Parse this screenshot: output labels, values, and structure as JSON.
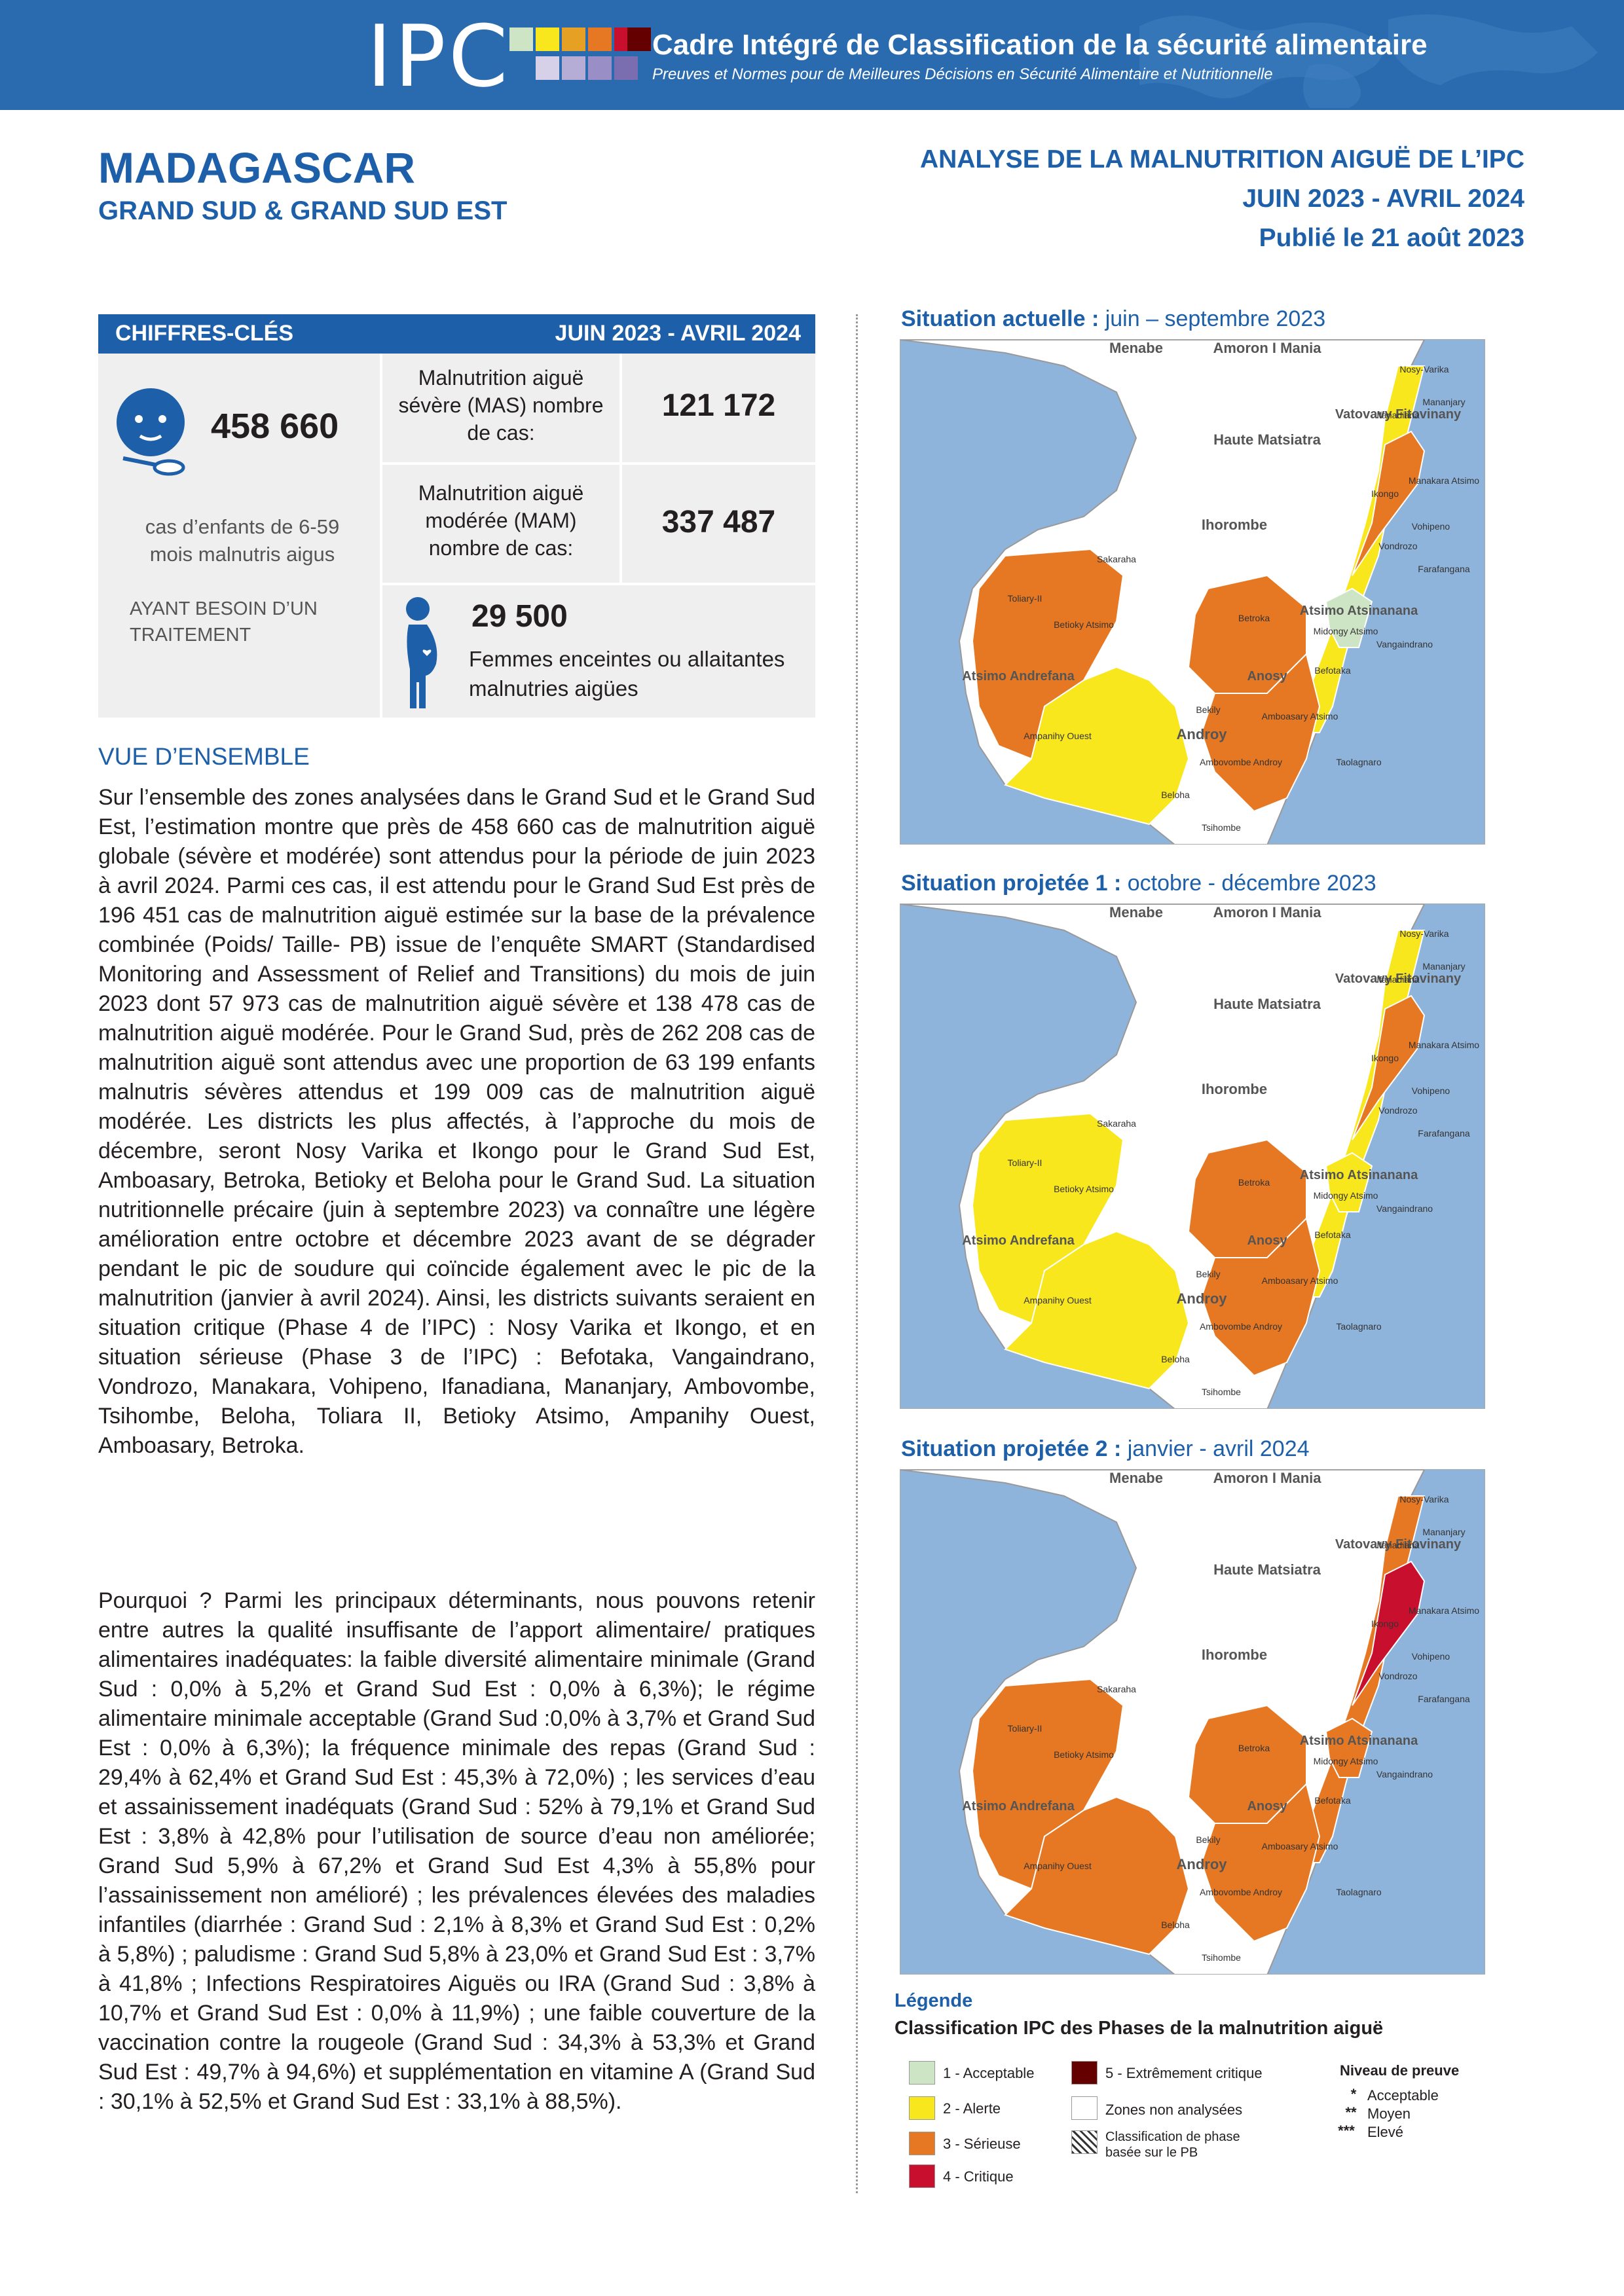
{
  "header": {
    "logo": "IPC",
    "title": "Cadre Intégré de Classification de la sécurité alimentaire",
    "subtitle": "Preuves et Normes pour de Meilleures Décisions en Sécurité Alimentaire et Nutritionnelle"
  },
  "country": "MADAGASCAR",
  "region": "GRAND SUD & GRAND SUD EST",
  "analysis": {
    "line1": "ANALYSE DE LA MALNUTRITION AIGUË DE L’IPC",
    "line2": "JUIN 2023 - AVRIL 2024",
    "line3": "Publié le 21 août 2023"
  },
  "key_figures": {
    "title": "CHIFFRES-CLÉS",
    "period": "JUIN 2023 - AVRIL 2024",
    "children_total": "458 660",
    "children_desc": "cas d’enfants de 6-59 mois malnutris aigus",
    "need_treatment": "AYANT BESOIN D’UN TRAITEMENT",
    "mas_label": "Malnutrition aiguë sévère (MAS) nombre de cas:",
    "mas_value": "121 172",
    "mam_label": "Malnutrition aiguë modérée (MAM) nombre de cas:",
    "mam_value": "337 487",
    "women_value": "29 500",
    "women_label": "Femmes enceintes ou allaitantes malnutries aigües"
  },
  "overview": {
    "title": "VUE D’ENSEMBLE",
    "p1": "Sur l’ensemble des zones analysées dans le Grand Sud et le Grand Sud Est, l’estimation montre que près de 458 660 cas de malnutrition aiguë globale (sévère et modérée) sont attendus pour la période de juin 2023 à avril 2024. Parmi ces cas, il est attendu pour le Grand Sud Est près de 196 451 cas de malnutrition aiguë estimée sur la base de la prévalence combinée (Poids/ Taille- PB) issue de l’enquête SMART (Standardised Monitoring and Assessment of Relief and Transitions) du mois de juin 2023 dont 57 973 cas de malnutrition aiguë sévère et 138 478 cas de malnutrition aiguë modérée. Pour le Grand Sud, près de 262 208 cas de malnutrition aiguë sont attendus avec une proportion de 63 199 enfants malnutris sévères attendus et 199 009 cas de malnutrition aiguë modérée. Les districts les plus affectés, à l’approche du mois de décembre, seront Nosy Varika et Ikongo pour le Grand Sud Est, Amboasary, Betroka, Betioky et Beloha pour le Grand Sud.  La situation nutritionnelle précaire (juin à septembre 2023) va connaître une légère amélioration entre octobre et décembre 2023 avant de se dégrader pendant le pic de soudure qui coïncide également avec le pic de la malnutrition (janvier à avril 2024).  Ainsi, les districts suivants seraient en situation critique (Phase 4 de l’IPC) : Nosy Varika et Ikongo, et en situation sérieuse (Phase 3 de l’IPC) : Befotaka, Vangaindrano, Vondrozo, Manakara, Vohipeno, Ifanadiana, Mananjary, Ambovombe, Tsihombe, Beloha, Toliara II, Betioky Atsimo, Ampanihy Ouest, Amboasary, Betroka.",
    "p2": "Pourquoi ? Parmi les principaux déterminants, nous pouvons retenir entre autres la qualité insuffisante de l’apport alimentaire/ pratiques alimentaires inadéquates: la faible diversité alimentaire minimale (Grand Sud : 0,0% à 5,2% et Grand Sud Est : 0,0% à 6,3%); le régime alimentaire minimale acceptable (Grand Sud :0,0% à 3,7% et Grand Sud Est : 0,0% à 6,3%); la fréquence minimale des repas (Grand Sud : 29,4% à 62,4% et Grand Sud Est : 45,3% à 72,0%) ;  les services d’eau et assainissement inadéquats (Grand Sud : 52% à 79,1% et Grand Sud Est : 3,8% à 42,8% pour l’utilisation de source d’eau non améliorée; Grand Sud 5,9% à 67,2% et Grand Sud Est 4,3% à 55,8% pour l’assainissement non amélioré) ; les prévalences élevées des maladies infantiles (diarrhée : Grand Sud : 2,1% à 8,3% et Grand Sud Est : 0,2% à 5,8%) ; paludisme : Grand Sud 5,8% à 23,0% et Grand Sud Est : 3,7% à 41,8% ; Infections Respiratoires Aiguës ou IRA (Grand Sud : 3,8% à 10,7% et Grand Sud Est : 0,0% à 11,9%) ; une faible couverture de la vaccination contre la rougeole (Grand Sud : 34,3% à 53,3% et Grand Sud Est : 49,7% à 94,6%) et supplémentation en vitamine A (Grand Sud : 30,1% à 52,5% et Grand Sud Est : 33,1% à 88,5%)."
  },
  "maps": [
    {
      "label_bold": "Situation actuelle :",
      "label_rest": " juin – septembre 2023"
    },
    {
      "label_bold": "Situation projetée 1 :",
      "label_rest": " octobre - décembre 2023"
    },
    {
      "label_bold": "Situation projetée 2 :",
      "label_rest": " janvier - avril 2024"
    }
  ],
  "map_places": {
    "menabe": "Menabe",
    "amoron": "Amoron I Mania",
    "haute": "Haute Matsiatra",
    "ihorombe": "Ihorombe",
    "vatovavy": "Vatovavy Fitovinany",
    "atsimo_atsinanana": "Atsimo Atsinanana",
    "atsimo_andrefana": "Atsimo Andrefana",
    "androy": "Androy",
    "anosy": "Anosy",
    "nosy_varika": "Nosy-Varika",
    "mananjary": "Mananjary",
    "ifanadiana": "Ifanadiana",
    "manakara": "Manakara Atsimo",
    "ikongo": "Ikongo",
    "vohipeno": "Vohipeno",
    "vondrozo": "Vondrozo",
    "farafangana": "Farafangana",
    "midongy": "Midongy Atsimo",
    "vangaindrano": "Vangaindrano",
    "befotaka": "Befotaka",
    "betroka": "Betroka",
    "sakaraha": "Sakaraha",
    "toliary": "Toliary-II",
    "betioky": "Betioky Atsimo",
    "ampanihy": "Ampanihy Ouest",
    "bekily": "Bekily",
    "amboasary": "Amboasary Atsimo",
    "ambovombe": "Ambovombe Androy",
    "beloha": "Beloha",
    "tsihombe": "Tsihombe",
    "taolagnaro": "Taolagnaro"
  },
  "legend": {
    "title": "Légende",
    "subtitle": "Classification IPC des Phases de la malnutrition aiguë",
    "phase1": "1 - Acceptable",
    "phase2": "2 - Alerte",
    "phase3": "3 - Sérieuse",
    "phase4": "4 - Critique",
    "phase5": "5 - Extrêmement critique",
    "not_analysed": "Zones non analysées",
    "muac": "Classification de phase basée sur le PB",
    "evidence_title": "Niveau de preuve",
    "ev1": "Acceptable",
    "ev2": "Moyen",
    "ev3": "Elevé",
    "star1": "*",
    "star2": "**",
    "star3": "***"
  },
  "colors": {
    "phase1": "#cde5c5",
    "phase2": "#f9e71e",
    "phase3": "#e67823",
    "phase4": "#c8102e",
    "phase5": "#640000",
    "ocean": "#8fb4dc",
    "accent": "#1d5fa8"
  }
}
